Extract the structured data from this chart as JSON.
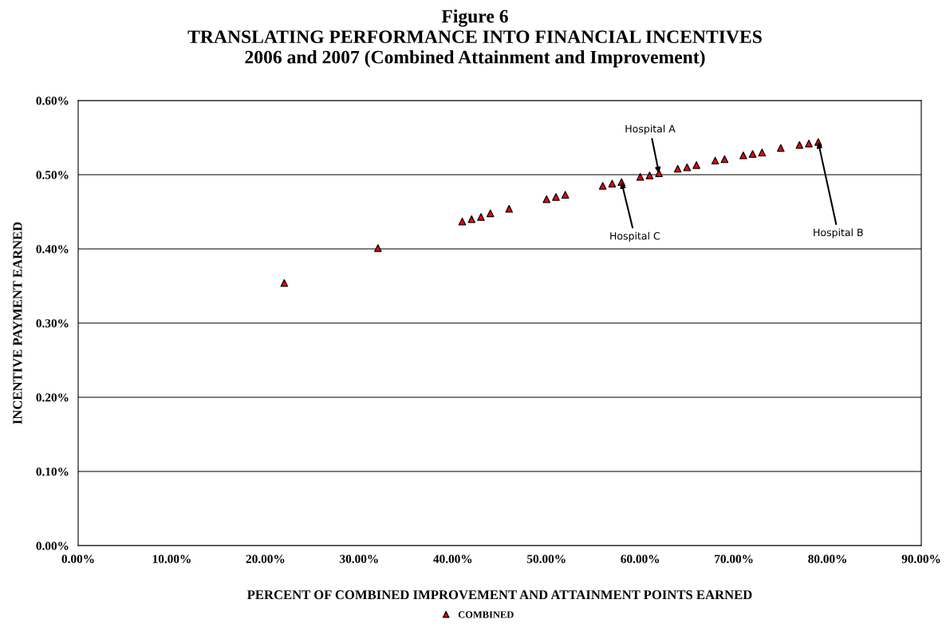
{
  "chart_data": {
    "type": "scatter",
    "title": "Figure 6\nTRANSLATING PERFORMANCE INTO FINANCIAL INCENTIVES\n2006 and 2007 (Combined Attainment and Improvement)",
    "xlabel": "PERCENT OF COMBINED IMPROVEMENT AND ATTAINMENT POINTS EARNED",
    "ylabel": "INCENTIVE PAYMENT EARNED",
    "series": [
      {
        "name": "COMBINED",
        "color": "#ff0000",
        "x": [
          22,
          32,
          41,
          42,
          43,
          44,
          46,
          50,
          51,
          52,
          56,
          57,
          58,
          60,
          61,
          62,
          64,
          65,
          66,
          68,
          69,
          71,
          72,
          73,
          75,
          77,
          78,
          79
        ],
        "values": [
          0.354,
          0.401,
          0.437,
          0.44,
          0.443,
          0.448,
          0.454,
          0.467,
          0.47,
          0.473,
          0.485,
          0.488,
          0.49,
          0.497,
          0.499,
          0.502,
          0.508,
          0.51,
          0.513,
          0.519,
          0.521,
          0.526,
          0.528,
          0.53,
          0.536,
          0.54,
          0.542,
          0.544
        ]
      }
    ],
    "marker": "triangle",
    "xlim": [
      0,
      90
    ],
    "xticks": [
      {
        "value": 0,
        "label": "0.00%"
      },
      {
        "value": 10,
        "label": "10.00%"
      },
      {
        "value": 20,
        "label": "20.00%"
      },
      {
        "value": 30,
        "label": "30.00%"
      },
      {
        "value": 40,
        "label": "40.00%"
      },
      {
        "value": 50,
        "label": "50.00%"
      },
      {
        "value": 60,
        "label": "60.00%"
      },
      {
        "value": 70,
        "label": "70.00%"
      },
      {
        "value": 80,
        "label": "80.00%"
      },
      {
        "value": 90,
        "label": "90.00%"
      }
    ],
    "ylim": [
      0,
      0.6
    ],
    "yticks": [
      {
        "value": 0,
        "label": "0.00%"
      },
      {
        "value": 0.1,
        "label": "0.10%"
      },
      {
        "value": 0.2,
        "label": "0.20%"
      },
      {
        "value": 0.3,
        "label": "0.30%"
      },
      {
        "value": 0.4,
        "label": "0.40%"
      },
      {
        "value": 0.5,
        "label": "0.50%"
      },
      {
        "value": 0.6,
        "label": "0.60%"
      }
    ],
    "grid": "y",
    "legend": "bottom",
    "annotations": [
      {
        "text": "Hospital A",
        "x": 62,
        "y": 0.502
      },
      {
        "text": "Hospital C",
        "x": 58,
        "y": 0.49
      },
      {
        "text": "Hospital B",
        "x": 79,
        "y": 0.544
      }
    ]
  }
}
